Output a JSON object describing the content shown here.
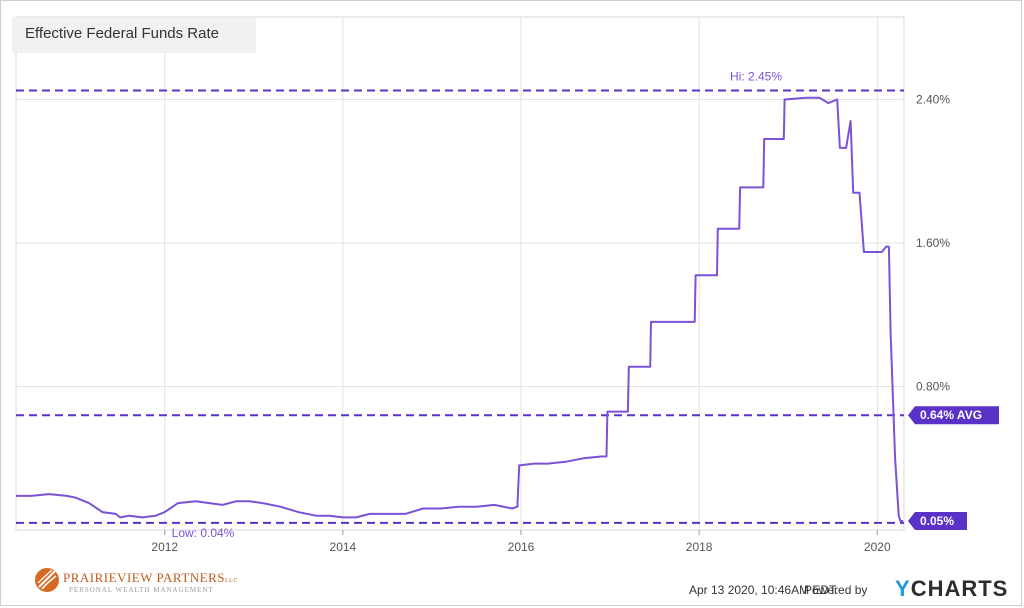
{
  "title": "Effective Federal Funds Rate",
  "footer": {
    "timestamp": "Apr 13 2020, 10:46AM EDT.",
    "powered_by": "Powered by",
    "brand": "CHARTS",
    "brand_initial": "Y"
  },
  "logo": {
    "name": "PRAIRIEVIEW PARTNERS",
    "tagline": "PERSONAL WEALTH MANAGEMENT",
    "suffix": "LLC"
  },
  "colors": {
    "line": "#7b52d6",
    "reference": "#5a32c8",
    "grid": "#e3e3e3",
    "axis_text": "#555555"
  },
  "chart_data": {
    "type": "line",
    "title": "Effective Federal Funds Rate",
    "x_ticks": [
      "2012",
      "2014",
      "2016",
      "2018",
      "2020"
    ],
    "y_ticks": [
      "0.80%",
      "1.60%",
      "2.40%"
    ],
    "xlim": [
      2010.33,
      2020.3
    ],
    "ylim": [
      0.0,
      2.86
    ],
    "grid": true,
    "annotations": {
      "high": {
        "label": "Hi: 2.45%",
        "value": 2.45
      },
      "low": {
        "label": "Low: 0.04%",
        "value": 0.04
      },
      "average": {
        "label": "0.64% AVG",
        "value": 0.64
      },
      "last": {
        "label": "0.05%",
        "value": 0.05
      }
    },
    "series": [
      {
        "points": [
          [
            2010.33,
            0.19
          ],
          [
            2010.5,
            0.19
          ],
          [
            2010.7,
            0.2
          ],
          [
            2010.9,
            0.19
          ],
          [
            2011.0,
            0.18
          ],
          [
            2011.15,
            0.15
          ],
          [
            2011.3,
            0.1
          ],
          [
            2011.45,
            0.09
          ],
          [
            2011.5,
            0.07
          ],
          [
            2011.6,
            0.08
          ],
          [
            2011.75,
            0.07
          ],
          [
            2011.9,
            0.08
          ],
          [
            2012.0,
            0.1
          ],
          [
            2012.15,
            0.15
          ],
          [
            2012.35,
            0.16
          ],
          [
            2012.5,
            0.15
          ],
          [
            2012.65,
            0.14
          ],
          [
            2012.8,
            0.16
          ],
          [
            2012.95,
            0.16
          ],
          [
            2013.1,
            0.15
          ],
          [
            2013.3,
            0.13
          ],
          [
            2013.5,
            0.1
          ],
          [
            2013.7,
            0.08
          ],
          [
            2013.85,
            0.08
          ],
          [
            2014.0,
            0.07
          ],
          [
            2014.15,
            0.07
          ],
          [
            2014.3,
            0.09
          ],
          [
            2014.5,
            0.09
          ],
          [
            2014.7,
            0.09
          ],
          [
            2014.9,
            0.12
          ],
          [
            2015.1,
            0.12
          ],
          [
            2015.3,
            0.13
          ],
          [
            2015.5,
            0.13
          ],
          [
            2015.7,
            0.14
          ],
          [
            2015.9,
            0.12
          ],
          [
            2015.96,
            0.13
          ],
          [
            2015.98,
            0.36
          ],
          [
            2016.15,
            0.37
          ],
          [
            2016.3,
            0.37
          ],
          [
            2016.5,
            0.38
          ],
          [
            2016.7,
            0.4
          ],
          [
            2016.9,
            0.41
          ],
          [
            2016.96,
            0.41
          ],
          [
            2016.97,
            0.66
          ],
          [
            2017.1,
            0.66
          ],
          [
            2017.2,
            0.66
          ],
          [
            2017.21,
            0.91
          ],
          [
            2017.45,
            0.91
          ],
          [
            2017.46,
            1.16
          ],
          [
            2017.95,
            1.16
          ],
          [
            2017.96,
            1.42
          ],
          [
            2018.2,
            1.42
          ],
          [
            2018.21,
            1.68
          ],
          [
            2018.45,
            1.68
          ],
          [
            2018.46,
            1.91
          ],
          [
            2018.72,
            1.91
          ],
          [
            2018.73,
            2.18
          ],
          [
            2018.95,
            2.18
          ],
          [
            2018.96,
            2.4
          ],
          [
            2019.2,
            2.41
          ],
          [
            2019.35,
            2.41
          ],
          [
            2019.45,
            2.38
          ],
          [
            2019.55,
            2.4
          ],
          [
            2019.58,
            2.13
          ],
          [
            2019.65,
            2.13
          ],
          [
            2019.7,
            2.28
          ],
          [
            2019.73,
            1.88
          ],
          [
            2019.8,
            1.88
          ],
          [
            2019.85,
            1.55
          ],
          [
            2020.05,
            1.55
          ],
          [
            2020.1,
            1.58
          ],
          [
            2020.13,
            1.58
          ],
          [
            2020.15,
            1.1
          ],
          [
            2020.2,
            0.4
          ],
          [
            2020.24,
            0.08
          ],
          [
            2020.26,
            0.05
          ],
          [
            2020.29,
            0.05
          ]
        ]
      }
    ]
  }
}
